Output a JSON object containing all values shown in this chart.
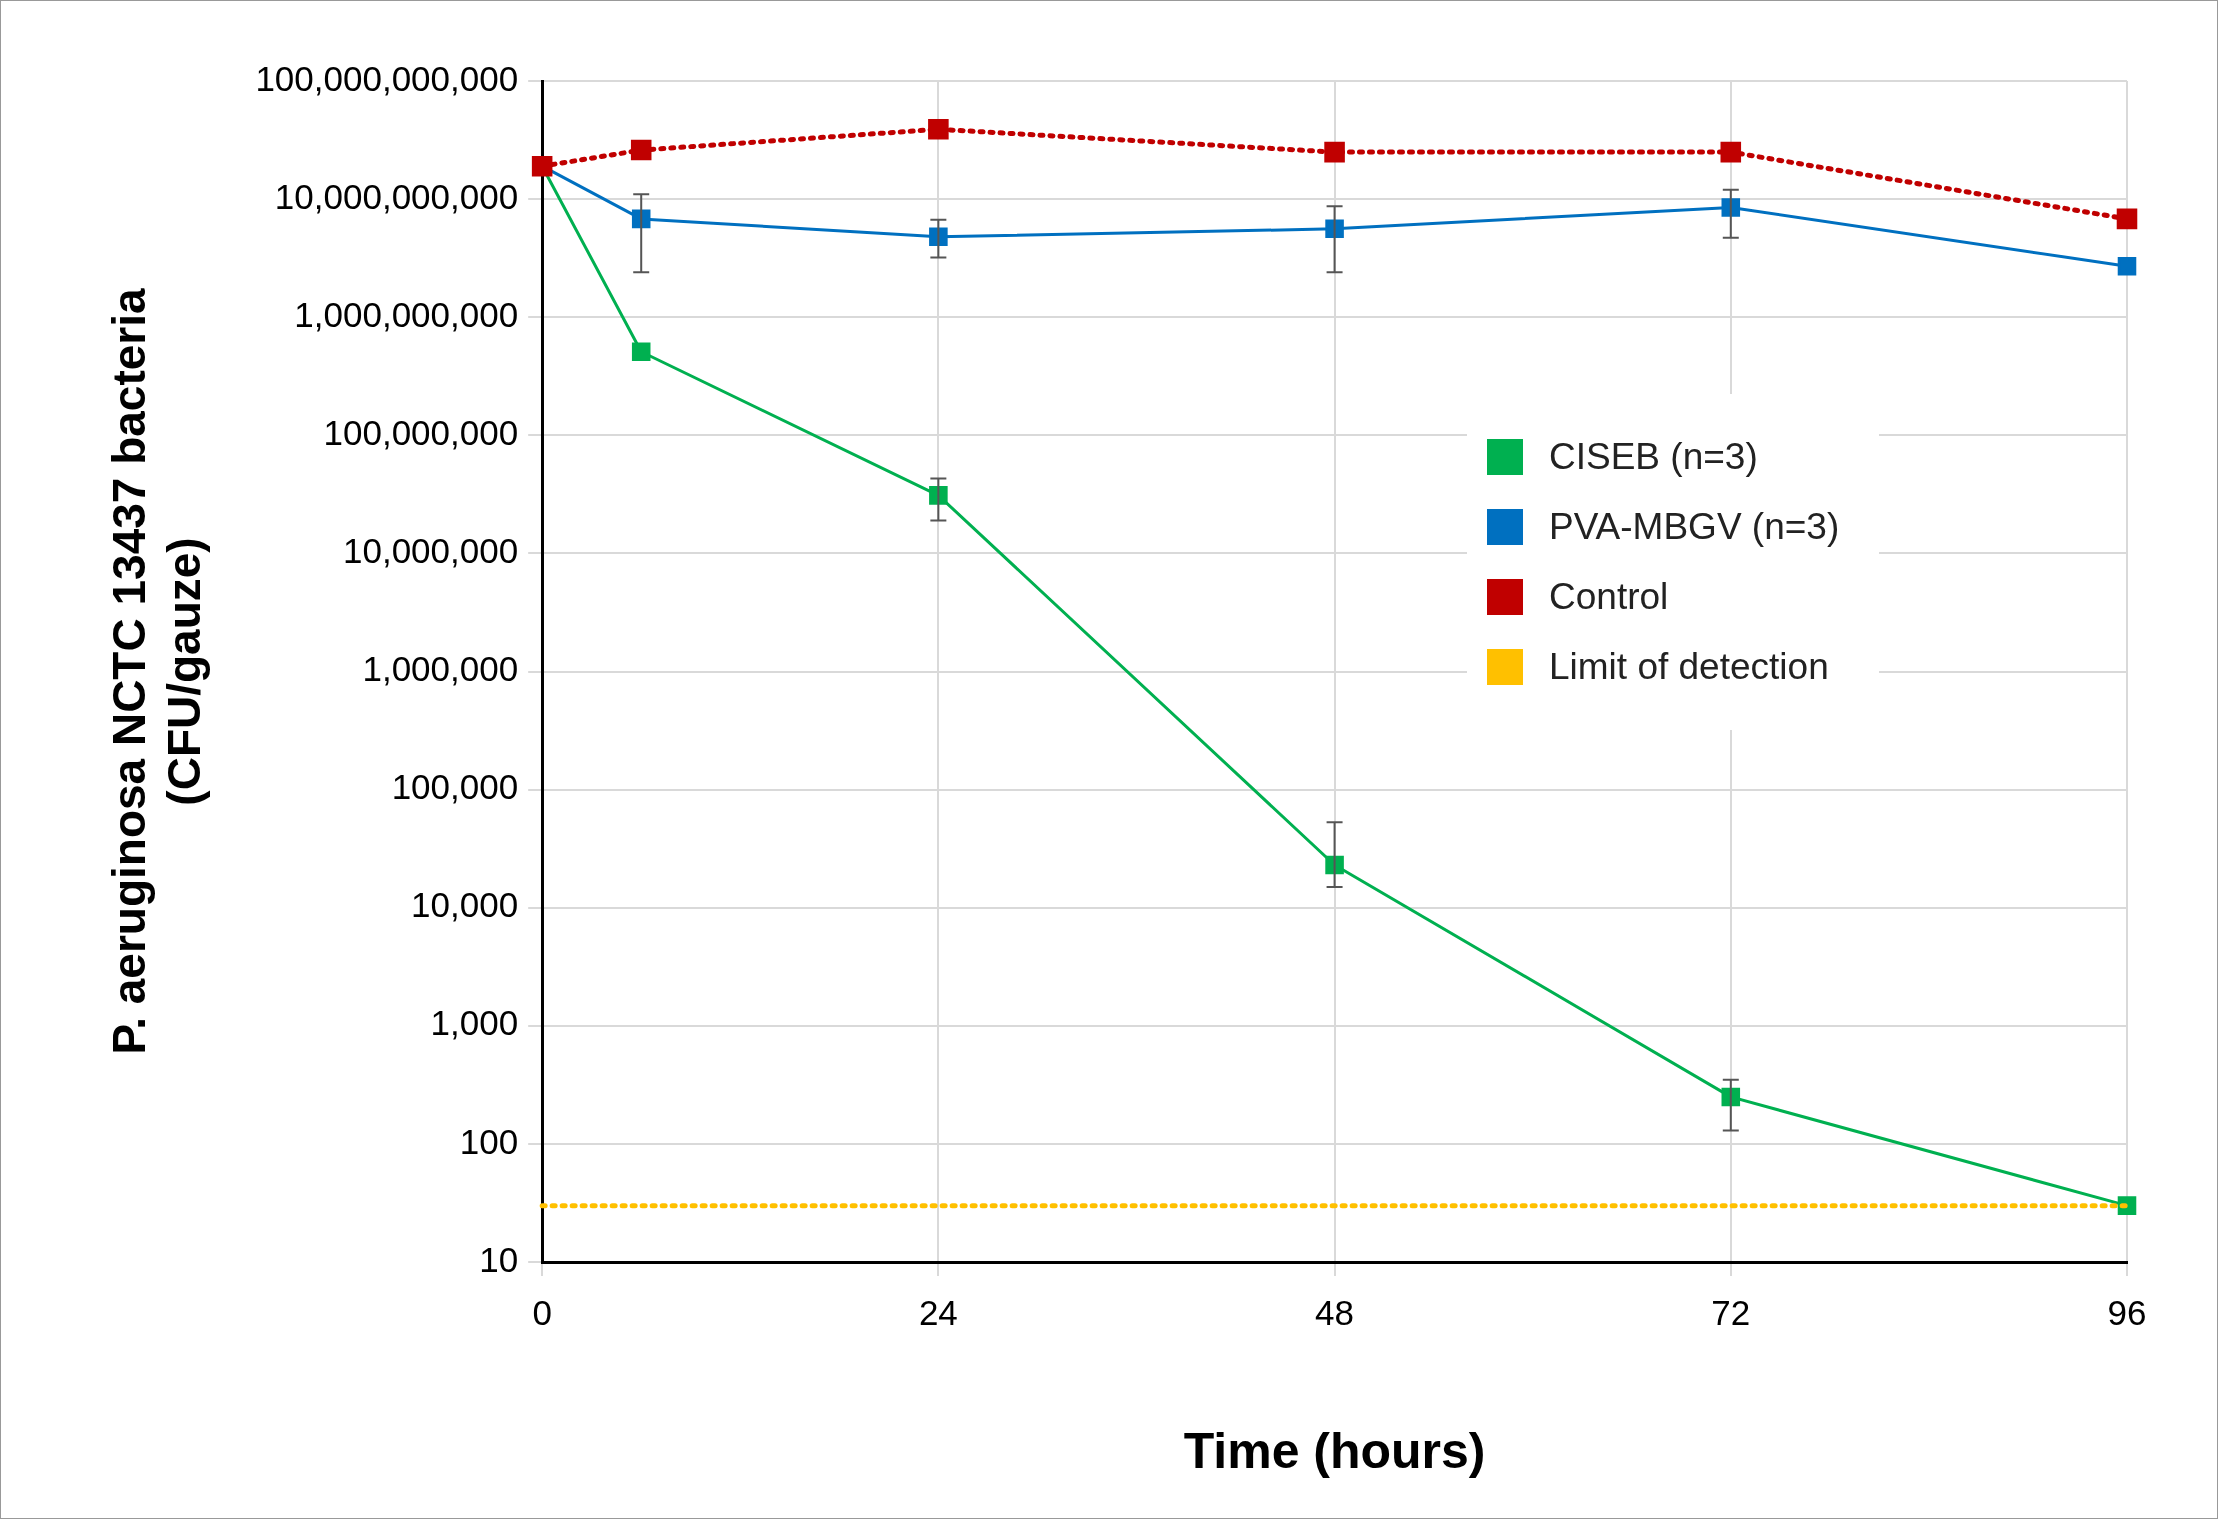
{
  "chart_data": {
    "type": "line",
    "xlabel": "Time (hours)",
    "ylabel": "P. aeruginosa NCTC 13437 bacteria\n(CFU/gauze)",
    "xlim": [
      0,
      96
    ],
    "xticks": [
      0,
      24,
      48,
      72,
      96
    ],
    "ylim": [
      10,
      100000000000
    ],
    "yticks": [
      {
        "value": 10,
        "label": "10"
      },
      {
        "value": 100,
        "label": "100"
      },
      {
        "value": 1000,
        "label": "1,000"
      },
      {
        "value": 10000,
        "label": "10,000"
      },
      {
        "value": 100000,
        "label": "100,000"
      },
      {
        "value": 1000000,
        "label": "1,000,000"
      },
      {
        "value": 10000000,
        "label": "10,000,000"
      },
      {
        "value": 100000000,
        "label": "100,000,000"
      },
      {
        "value": 1000000000,
        "label": "1,000,000,000"
      },
      {
        "value": 10000000000,
        "label": "10,000,000,000"
      },
      {
        "value": 100000000000,
        "label": "100,000,000,000"
      }
    ],
    "log": "y",
    "grid": true,
    "legend": "right",
    "marker": "square",
    "series": [
      {
        "name": "CISEB (n=3)",
        "color": "#00b050",
        "x": [
          0,
          6,
          24,
          48,
          72,
          96
        ],
        "values": [
          19000000000,
          510000000,
          31000000,
          23000,
          250,
          30
        ],
        "errors": [
          null,
          null,
          [
            19000000,
            43000000
          ],
          [
            15000,
            53000
          ],
          [
            130,
            350
          ],
          null
        ],
        "line_style": "solid"
      },
      {
        "name": "PVA-MBGV (n=3)",
        "color": "#0070c0",
        "x": [
          0,
          6,
          24,
          48,
          72,
          96
        ],
        "values": [
          19000000000,
          6800000000,
          4800000000,
          5600000000,
          8500000000,
          2700000000
        ],
        "errors": [
          null,
          [
            2400000000,
            11000000000
          ],
          [
            3200000000,
            6700000000
          ],
          [
            2400000000,
            8700000000
          ],
          [
            4700000000,
            12000000000
          ],
          null
        ],
        "line_style": "solid"
      },
      {
        "name": "Control",
        "color": "#c00000",
        "x": [
          0,
          6,
          24,
          48,
          72,
          96
        ],
        "values": [
          19000000000,
          26000000000,
          39000000000,
          25000000000,
          25000000000,
          6800000000
        ],
        "line_style": "dotted"
      },
      {
        "name": "Limit of detection",
        "color": "#ffc000",
        "x": [
          0,
          96
        ],
        "values": [
          30,
          30
        ],
        "line_style": "dotted",
        "marker": "none"
      }
    ]
  }
}
